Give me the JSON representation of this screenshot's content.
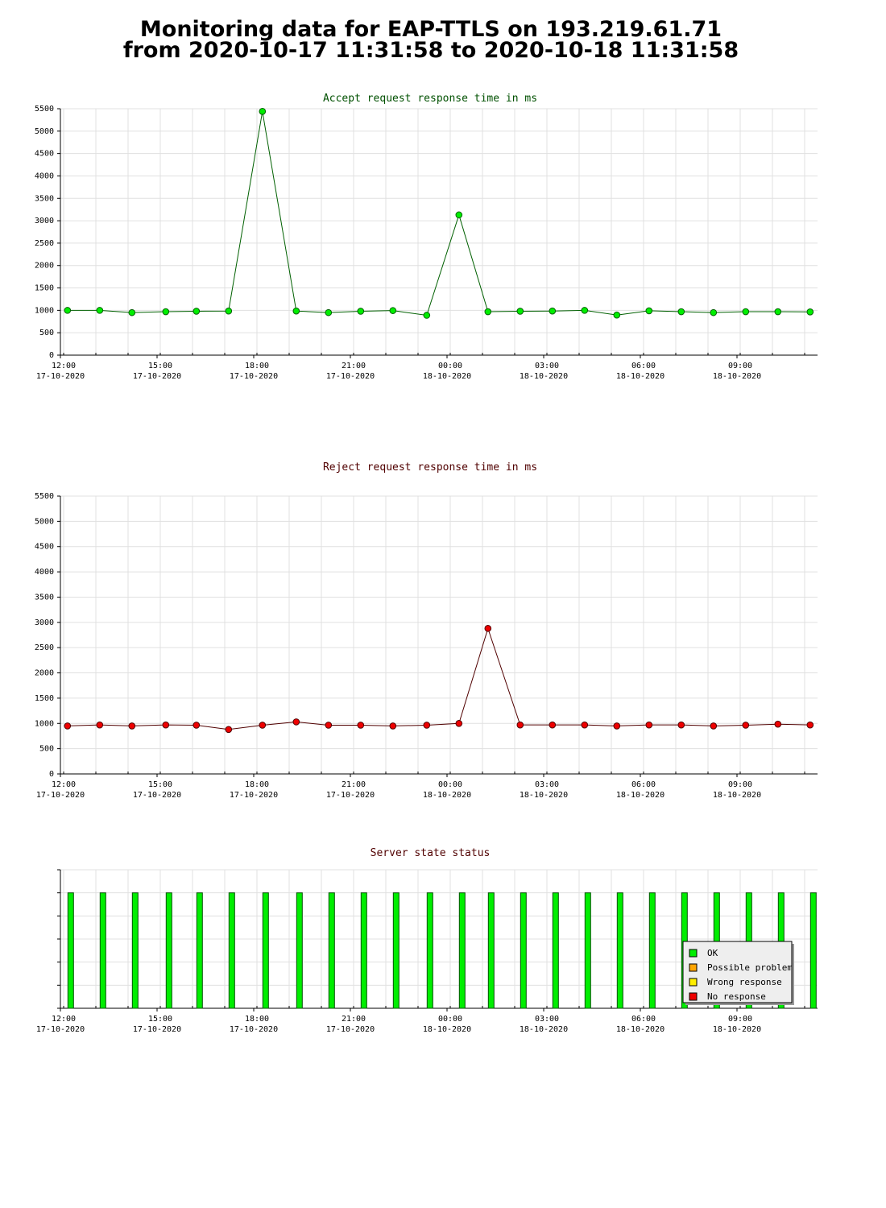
{
  "page": {
    "title_line1": "Monitoring data for EAP-TTLS on 193.219.61.71",
    "title_line2": "from 2020-10-17 11:31:58 to 2020-10-18 11:31:58"
  },
  "x_axis": {
    "labels": [
      {
        "time": "12:00",
        "date": "17-10-2020",
        "hour": 0
      },
      {
        "time": "15:00",
        "date": "17-10-2020",
        "hour": 3
      },
      {
        "time": "18:00",
        "date": "17-10-2020",
        "hour": 6
      },
      {
        "time": "21:00",
        "date": "17-10-2020",
        "hour": 9
      },
      {
        "time": "00:00",
        "date": "18-10-2020",
        "hour": 12
      },
      {
        "time": "03:00",
        "date": "18-10-2020",
        "hour": 15
      },
      {
        "time": "06:00",
        "date": "18-10-2020",
        "hour": 18
      },
      {
        "time": "09:00",
        "date": "18-10-2020",
        "hour": 21
      }
    ],
    "range_hours": [
      0,
      23.5
    ]
  },
  "chart_data": [
    {
      "type": "line",
      "title": "Accept request response time in ms",
      "title_color": "#005000",
      "line_color": "#006000",
      "marker_color": "#00ee00",
      "ylim": [
        0,
        5500
      ],
      "yticks": [
        0,
        500,
        1000,
        1500,
        2000,
        2500,
        3000,
        3500,
        4000,
        4500,
        5000,
        5500
      ],
      "grid": true,
      "x": [
        0.22,
        1.22,
        2.22,
        3.27,
        4.22,
        5.22,
        6.27,
        7.32,
        8.32,
        9.32,
        10.32,
        11.37,
        12.37,
        13.27,
        14.27,
        15.27,
        16.27,
        17.27,
        18.27,
        19.27,
        20.27,
        21.27,
        22.27,
        23.27
      ],
      "y": [
        1000,
        1000,
        950,
        970,
        980,
        985,
        5440,
        985,
        950,
        980,
        995,
        890,
        3130,
        970,
        980,
        985,
        1000,
        895,
        990,
        970,
        950,
        970,
        970,
        965
      ]
    },
    {
      "type": "line",
      "title": "Reject request response time in ms",
      "title_color": "#500000",
      "line_color": "#500000",
      "marker_color": "#ee0000",
      "ylim": [
        0,
        5500
      ],
      "yticks": [
        0,
        500,
        1000,
        1500,
        2000,
        2500,
        3000,
        3500,
        4000,
        4500,
        5000,
        5500
      ],
      "grid": true,
      "x": [
        0.22,
        1.22,
        2.22,
        3.27,
        4.22,
        5.22,
        6.27,
        7.32,
        8.32,
        9.32,
        10.32,
        11.37,
        12.37,
        13.27,
        14.27,
        15.27,
        16.27,
        17.27,
        18.27,
        19.27,
        20.27,
        21.27,
        22.27,
        23.27
      ],
      "y": [
        950,
        970,
        950,
        970,
        965,
        880,
        965,
        1030,
        965,
        965,
        950,
        965,
        1000,
        2880,
        970,
        970,
        970,
        950,
        970,
        970,
        950,
        965,
        985,
        970
      ]
    },
    {
      "type": "bar",
      "title": "Server state status",
      "title_color": "#500000",
      "bar_color": "#00ee00",
      "ylim": [
        0,
        6
      ],
      "grid": true,
      "x": [
        0.32,
        1.32,
        2.32,
        3.37,
        4.32,
        5.32,
        6.37,
        7.42,
        8.42,
        9.42,
        10.42,
        11.47,
        12.47,
        13.37,
        14.37,
        15.37,
        16.37,
        17.37,
        18.37,
        19.37,
        20.37,
        21.37,
        22.37,
        23.37
      ],
      "values": [
        5,
        5,
        5,
        5,
        5,
        5,
        5,
        5,
        5,
        5,
        5,
        5,
        5,
        5,
        5,
        5,
        5,
        5,
        5,
        5,
        5,
        5,
        5,
        5
      ],
      "legend_placement": "bottom-right",
      "legend": [
        {
          "label": "OK",
          "color": "#00ee00"
        },
        {
          "label": "Possible problem",
          "color": "#ffa500"
        },
        {
          "label": "Wrong response",
          "color": "#ffee00"
        },
        {
          "label": "No response",
          "color": "#ee0000"
        }
      ]
    }
  ]
}
